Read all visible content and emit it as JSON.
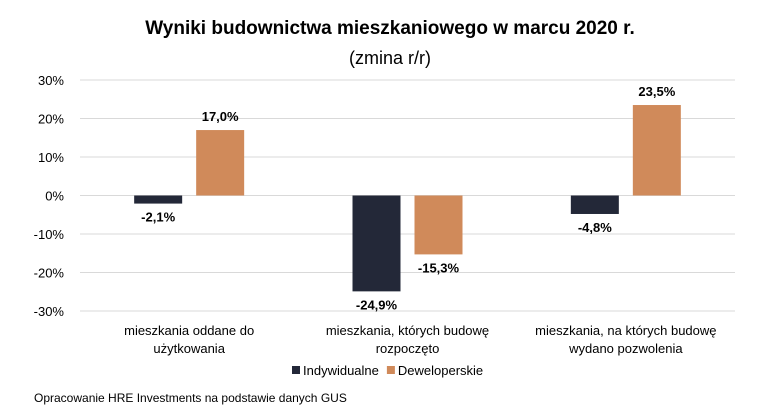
{
  "chart_data": {
    "type": "bar",
    "title": "Wyniki budownictwa mieszkaniowego w marcu 2020 r.",
    "subtitle": "(zmina r/r)",
    "categories": [
      [
        "mieszkania oddane do",
        "użytkowania"
      ],
      [
        "mieszkania, których budowę",
        "rozpoczęto"
      ],
      [
        "mieszkania, na których budowę",
        "wydano pozwolenia"
      ]
    ],
    "series": [
      {
        "name": "Indywidualne",
        "color": "#232838",
        "values": [
          -2.1,
          -24.9,
          -4.8
        ],
        "labels": [
          "-2,1%",
          "-24,9%",
          "-4,8%"
        ]
      },
      {
        "name": "Deweloperskie",
        "color": "#d08a5a",
        "values": [
          17.0,
          -15.3,
          23.5
        ],
        "labels": [
          "17,0%",
          "-15,3%",
          "23,5%"
        ]
      }
    ],
    "ylim": [
      -30,
      30
    ],
    "yticks": [
      30,
      20,
      10,
      0,
      -10,
      -20,
      -30
    ],
    "ytick_labels": [
      "30%",
      "20%",
      "10%",
      "0%",
      "-10%",
      "-20%",
      "-30%"
    ],
    "grid": true,
    "legend": "bottom",
    "xlabel": "",
    "ylabel": ""
  },
  "footnote": "Opracowanie HRE Investments na podstawie danych GUS"
}
